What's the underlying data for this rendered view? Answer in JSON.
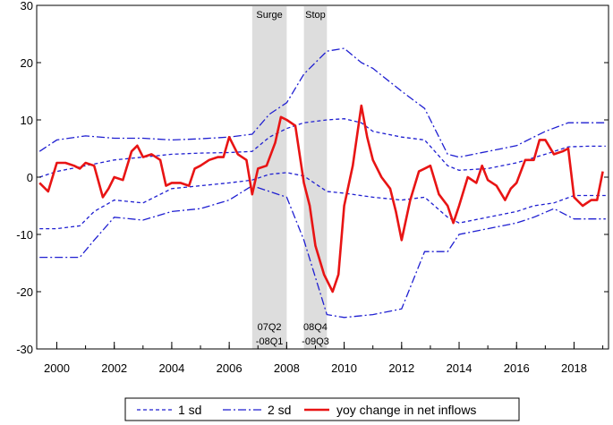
{
  "chart_data": {
    "type": "line",
    "title": "",
    "xlabel": "",
    "ylabel": "",
    "xlim": [
      1999.3,
      2019.2
    ],
    "ylim": [
      -30,
      30
    ],
    "y_ticks": [
      30,
      20,
      10,
      0,
      -10,
      -20,
      -30
    ],
    "x_ticks": [
      2000,
      2002,
      2004,
      2006,
      2008,
      2010,
      2012,
      2014,
      2016,
      2018
    ],
    "grid": false,
    "legend_position": "bottom",
    "shaded_periods": [
      {
        "label": "Surge",
        "start": 2006.8,
        "end": 2008.0,
        "start_label": "07Q2",
        "end_label": "-08Q1"
      },
      {
        "label": "Stop",
        "start": 2008.6,
        "end": 2009.4,
        "start_label": "08Q4",
        "end_label": "-09Q3"
      }
    ],
    "series": [
      {
        "name": "1 sd",
        "color": "#1f1fd1",
        "style": "dashed",
        "upper": [
          [
            1999.4,
            0
          ],
          [
            2000,
            1
          ],
          [
            2001,
            2
          ],
          [
            2002,
            3
          ],
          [
            2003,
            3.5
          ],
          [
            2004,
            4
          ],
          [
            2005,
            4.2
          ],
          [
            2006,
            4.3
          ],
          [
            2006.8,
            4.5
          ],
          [
            2007.4,
            7
          ],
          [
            2008,
            8.5
          ],
          [
            2008.6,
            9.5
          ],
          [
            2009.4,
            10
          ],
          [
            2010,
            10.2
          ],
          [
            2010.6,
            9.5
          ],
          [
            2011,
            8
          ],
          [
            2012,
            7
          ],
          [
            2012.8,
            6.5
          ],
          [
            2013.6,
            2
          ],
          [
            2014,
            1.2
          ],
          [
            2015,
            1.5
          ],
          [
            2016,
            2.5
          ],
          [
            2017,
            4
          ],
          [
            2017.8,
            5.3
          ],
          [
            2018.5,
            5.4
          ],
          [
            2019.1,
            5.4
          ]
        ],
        "lower": [
          [
            1999.4,
            -9
          ],
          [
            2000,
            -9
          ],
          [
            2000.8,
            -8.5
          ],
          [
            2001.3,
            -6
          ],
          [
            2002,
            -4
          ],
          [
            2003,
            -4.5
          ],
          [
            2004,
            -2
          ],
          [
            2005,
            -1.5
          ],
          [
            2006,
            -1
          ],
          [
            2006.8,
            -0.5
          ],
          [
            2007.4,
            0.5
          ],
          [
            2008,
            0.8
          ],
          [
            2008.6,
            0.2
          ],
          [
            2009.4,
            -2.5
          ],
          [
            2010,
            -2.8
          ],
          [
            2011,
            -3.5
          ],
          [
            2012,
            -4
          ],
          [
            2012.8,
            -3.5
          ],
          [
            2013.6,
            -7
          ],
          [
            2014,
            -8
          ],
          [
            2015,
            -7
          ],
          [
            2016,
            -6
          ],
          [
            2016.6,
            -5
          ],
          [
            2017.3,
            -4.5
          ],
          [
            2018,
            -3.2
          ],
          [
            2019.1,
            -3.2
          ]
        ]
      },
      {
        "name": "2 sd",
        "color": "#1f1fd1",
        "style": "dashdot",
        "upper": [
          [
            1999.4,
            4.5
          ],
          [
            2000,
            6.5
          ],
          [
            2001,
            7.2
          ],
          [
            2002,
            6.8
          ],
          [
            2003,
            6.8
          ],
          [
            2004,
            6.5
          ],
          [
            2005,
            6.7
          ],
          [
            2006,
            7
          ],
          [
            2006.8,
            7.5
          ],
          [
            2007.4,
            11
          ],
          [
            2008,
            13
          ],
          [
            2008.6,
            18
          ],
          [
            2009.4,
            22
          ],
          [
            2010,
            22.5
          ],
          [
            2010.6,
            20
          ],
          [
            2011,
            19
          ],
          [
            2012,
            15
          ],
          [
            2012.8,
            12
          ],
          [
            2013.6,
            4
          ],
          [
            2014,
            3.5
          ],
          [
            2015,
            4.5
          ],
          [
            2016,
            5.5
          ],
          [
            2017,
            8
          ],
          [
            2017.8,
            9.5
          ],
          [
            2018.5,
            9.5
          ],
          [
            2019.1,
            9.5
          ]
        ],
        "lower": [
          [
            1999.4,
            -14
          ],
          [
            2000,
            -14
          ],
          [
            2000.8,
            -14
          ],
          [
            2001.3,
            -11
          ],
          [
            2002,
            -7
          ],
          [
            2003,
            -7.5
          ],
          [
            2004,
            -6
          ],
          [
            2005,
            -5.5
          ],
          [
            2006,
            -4
          ],
          [
            2006.8,
            -1.5
          ],
          [
            2007.4,
            -2.5
          ],
          [
            2008,
            -3.5
          ],
          [
            2008.6,
            -11
          ],
          [
            2009.4,
            -24
          ],
          [
            2010,
            -24.5
          ],
          [
            2011,
            -24
          ],
          [
            2012,
            -23
          ],
          [
            2012.8,
            -13
          ],
          [
            2013.6,
            -13
          ],
          [
            2014,
            -10
          ],
          [
            2015,
            -9
          ],
          [
            2016,
            -8
          ],
          [
            2016.6,
            -7
          ],
          [
            2017.3,
            -5.5
          ],
          [
            2018,
            -7.3
          ],
          [
            2019.1,
            -7.3
          ]
        ]
      },
      {
        "name": "yoy change in net inflows",
        "color": "#e81414",
        "style": "solid",
        "x": [
          1999.4,
          1999.7,
          2000.0,
          2000.3,
          2000.6,
          2000.8,
          2001.0,
          2001.3,
          2001.6,
          2001.8,
          2002.0,
          2002.3,
          2002.6,
          2002.8,
          2003.0,
          2003.3,
          2003.6,
          2003.8,
          2004.0,
          2004.3,
          2004.6,
          2004.8,
          2005.0,
          2005.3,
          2005.6,
          2005.8,
          2006.0,
          2006.3,
          2006.6,
          2006.8,
          2007.0,
          2007.3,
          2007.6,
          2007.8,
          2008.0,
          2008.3,
          2008.6,
          2008.8,
          2009.0,
          2009.3,
          2009.6,
          2009.8,
          2010.0,
          2010.3,
          2010.6,
          2010.8,
          2011.0,
          2011.3,
          2011.6,
          2011.8,
          2012.0,
          2012.3,
          2012.6,
          2012.8,
          2013.0,
          2013.3,
          2013.6,
          2013.8,
          2014.0,
          2014.3,
          2014.6,
          2014.8,
          2015.0,
          2015.3,
          2015.6,
          2015.8,
          2016.0,
          2016.3,
          2016.6,
          2016.8,
          2017.0,
          2017.3,
          2017.6,
          2017.8,
          2018.0,
          2018.3,
          2018.6,
          2018.8,
          2019.0
        ],
        "y": [
          -1,
          -2.5,
          2.5,
          2.5,
          2,
          1.5,
          2.5,
          2,
          -3.5,
          -2,
          0,
          -0.5,
          4.5,
          5.5,
          3.5,
          4,
          3,
          -1.5,
          -1,
          -1,
          -1.5,
          1.5,
          2,
          3,
          3.5,
          3.5,
          7,
          4,
          3,
          -3,
          1.5,
          2,
          6,
          10.5,
          10,
          9,
          -1,
          -5,
          -12,
          -17,
          -20,
          -17,
          -5,
          2,
          12.5,
          7,
          3,
          0,
          -2,
          -6,
          -11,
          -4,
          1,
          1.5,
          2,
          -3,
          -5,
          -8,
          -5,
          0,
          -1,
          2,
          -0.5,
          -1.5,
          -4,
          -2,
          -1,
          3,
          3,
          6.5,
          6.5,
          4,
          4.5,
          5,
          -3.5,
          -5,
          -4,
          -4,
          1
        ]
      }
    ]
  }
}
